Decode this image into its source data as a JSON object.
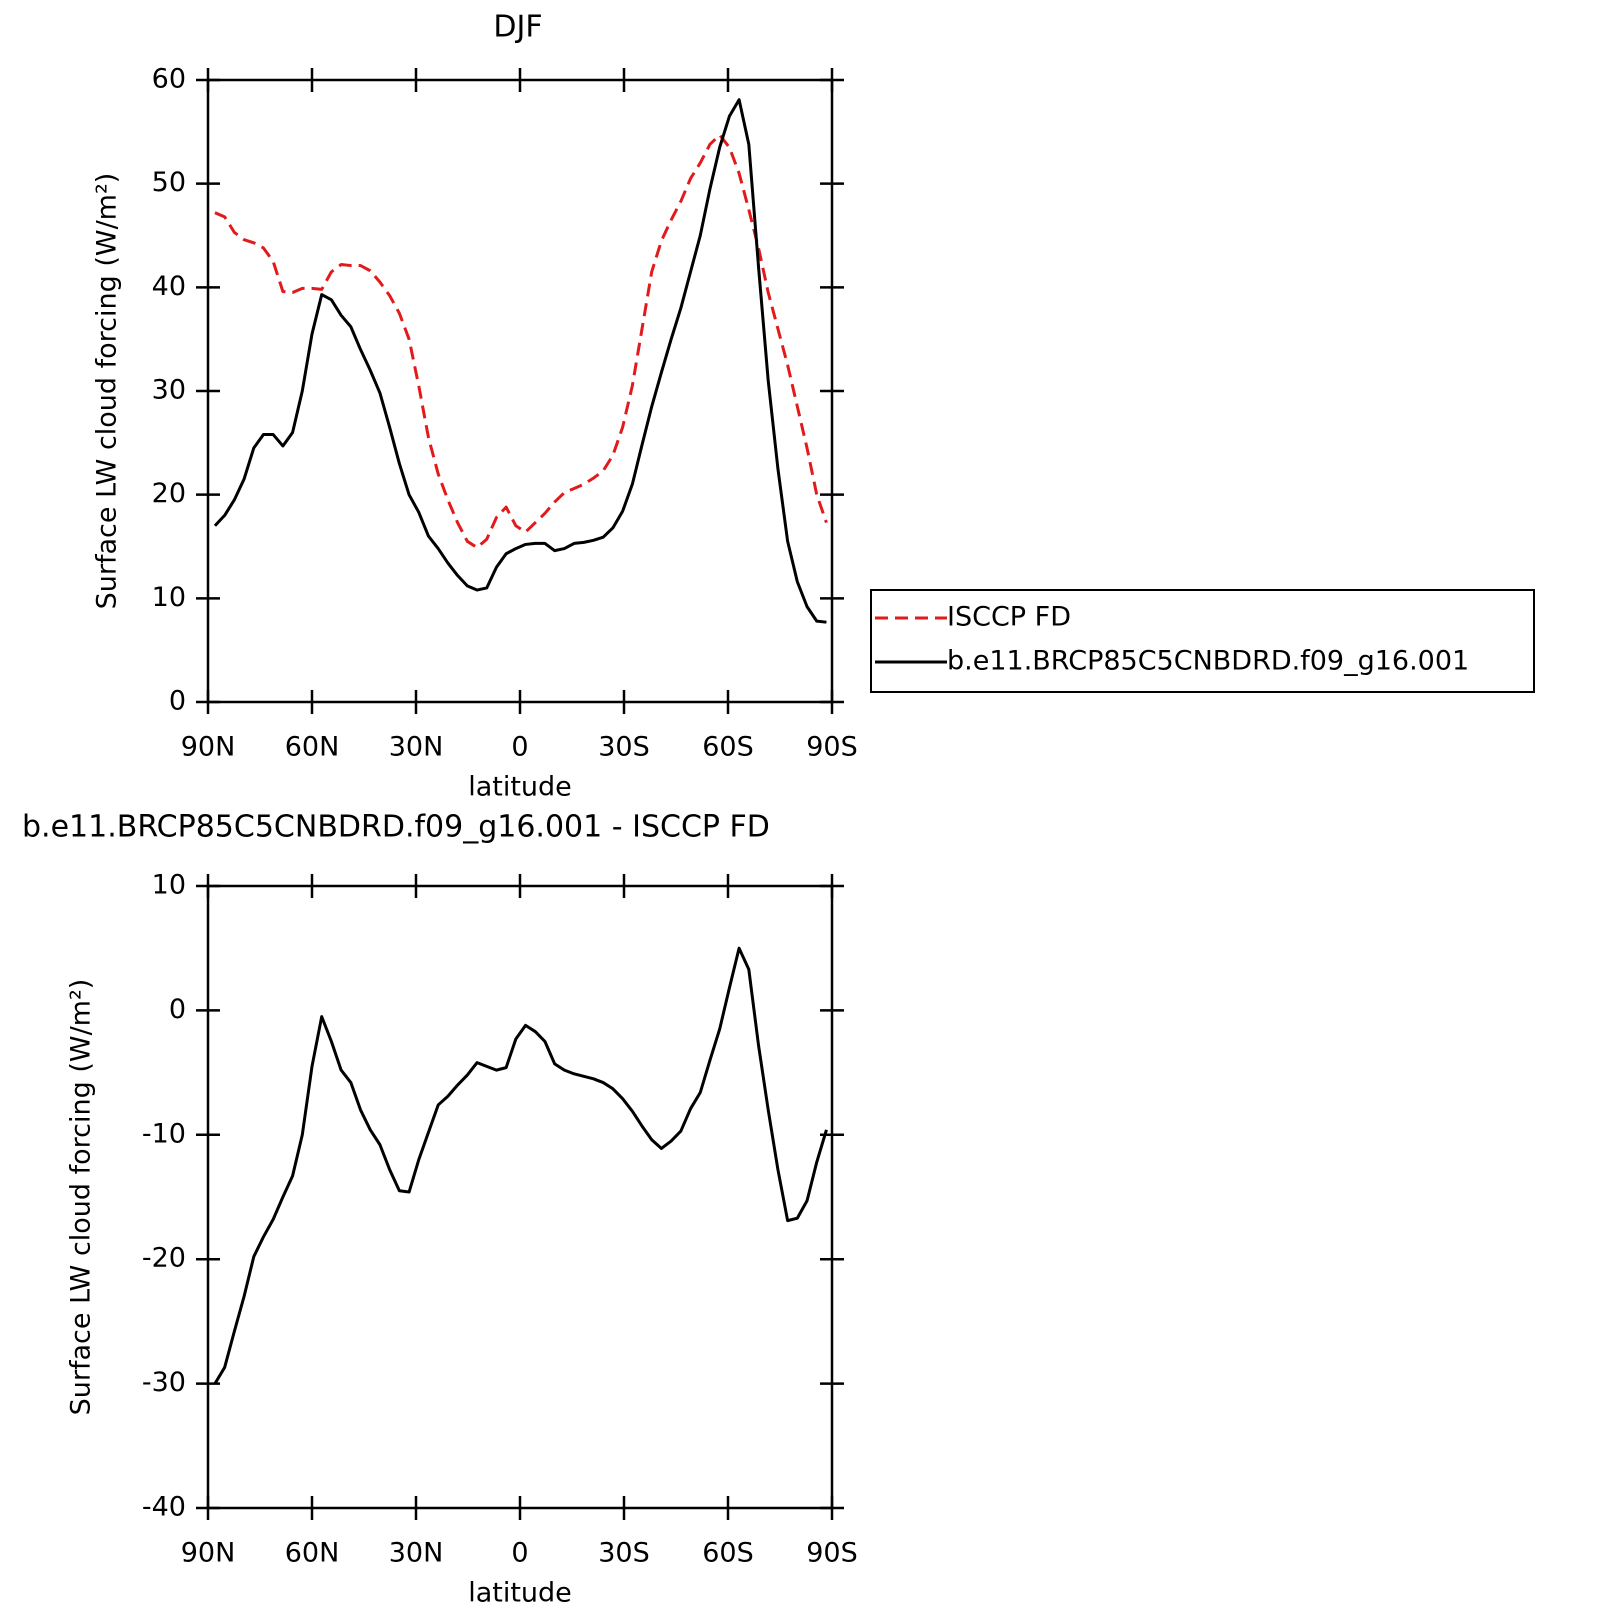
{
  "chart_data": [
    {
      "type": "line",
      "title": "DJF",
      "xlabel": "latitude",
      "ylabel": "Surface LW cloud forcing (W/m²)",
      "x": [
        88,
        85.2,
        82.4,
        79.6,
        76.8,
        74,
        71.2,
        68.4,
        65.6,
        62.8,
        60,
        57.2,
        54.4,
        51.6,
        48.8,
        46,
        43.2,
        40.4,
        37.6,
        34.8,
        32,
        29.2,
        26.4,
        23.6,
        20.8,
        18,
        15.2,
        12.4,
        9.6,
        6.8,
        4,
        1.2,
        -1.6,
        -4.4,
        -7.2,
        -10,
        -12.8,
        -15.6,
        -18.4,
        -21.2,
        -24,
        -26.8,
        -29.6,
        -32.4,
        -35.2,
        -38,
        -40.8,
        -43.6,
        -46.4,
        -49.2,
        -52,
        -54.8,
        -57.6,
        -60.4,
        -63.2,
        -66,
        -68.8,
        -71.6,
        -74.4,
        -77.2,
        -80,
        -82.8,
        -85.6,
        -88.4
      ],
      "series": [
        {
          "name": "ISCCP FD",
          "color": "#e31a1c",
          "linestyle": "dashed",
          "values": [
            47.2,
            46.8,
            45.3,
            44.6,
            44.3,
            43.8,
            42.5,
            39.6,
            39.5,
            39.9,
            39.9,
            39.8,
            41.5,
            42.2,
            42.1,
            42.1,
            41.6,
            40.5,
            39.2,
            37.5,
            35,
            30.5,
            25.5,
            22,
            19.5,
            17.3,
            15.5,
            14.9,
            15.7,
            17.8,
            18.8,
            17,
            16.4,
            17.3,
            18.2,
            19.3,
            20.2,
            20.6,
            21,
            21.6,
            22.3,
            23.8,
            26.5,
            30.5,
            36,
            41.5,
            44.5,
            46.5,
            48.3,
            50.5,
            52,
            53.8,
            54.7,
            53.5,
            51,
            47.5,
            43.8,
            39.5,
            36,
            32.5,
            28.5,
            24.5,
            20,
            17.3
          ]
        },
        {
          "name": "b.e11.BRCP85C5CNBDRD.f09_g16.001",
          "color": "#000000",
          "linestyle": "solid",
          "values": [
            17,
            18,
            19.5,
            21.5,
            24.5,
            25.8,
            25.8,
            24.7,
            26,
            30,
            35.5,
            39.3,
            38.8,
            37.3,
            36.2,
            34,
            32,
            29.8,
            26.5,
            23,
            20,
            18.3,
            16,
            14.8,
            13.4,
            12.2,
            11.2,
            10.8,
            11,
            13,
            14.3,
            14.8,
            15.2,
            15.3,
            15.3,
            14.6,
            14.8,
            15.3,
            15.4,
            15.6,
            15.9,
            16.8,
            18.4,
            21,
            24.8,
            28.5,
            31.8,
            35,
            38,
            41.5,
            45,
            49.5,
            53.5,
            56.5,
            58.1,
            53.8,
            42,
            31,
            22.5,
            15.5,
            11.6,
            9.2,
            7.8,
            7.7
          ]
        }
      ],
      "xlim": [
        90,
        -90
      ],
      "xticks": [
        {
          "value": 90,
          "label": "90N"
        },
        {
          "value": 60,
          "label": "60N"
        },
        {
          "value": 30,
          "label": "30N"
        },
        0,
        {
          "value": -30,
          "label": "30S"
        },
        {
          "value": -60,
          "label": "60S"
        },
        {
          "value": -90,
          "label": "90S"
        }
      ],
      "ylim": [
        0,
        60
      ],
      "yticks": [
        0,
        10,
        20,
        30,
        40,
        50,
        60
      ],
      "legend": "right"
    },
    {
      "type": "line",
      "title": "b.e11.BRCP85C5CNBDRD.f09_g16.001 - ISCCP FD",
      "xlabel": "latitude",
      "ylabel": "Surface LW cloud forcing (W/m²)",
      "x": [
        88,
        85.2,
        82.4,
        79.6,
        76.8,
        74,
        71.2,
        68.4,
        65.6,
        62.8,
        60,
        57.2,
        54.4,
        51.6,
        48.8,
        46,
        43.2,
        40.4,
        37.6,
        34.8,
        32,
        29.2,
        26.4,
        23.6,
        20.8,
        18,
        15.2,
        12.4,
        9.6,
        6.8,
        4,
        1.2,
        -1.6,
        -4.4,
        -7.2,
        -10,
        -12.8,
        -15.6,
        -18.4,
        -21.2,
        -24,
        -26.8,
        -29.6,
        -32.4,
        -35.2,
        -38,
        -40.8,
        -43.6,
        -46.4,
        -49.2,
        -52,
        -54.8,
        -57.6,
        -60.4,
        -63.2,
        -66,
        -68.8,
        -71.6,
        -74.4,
        -77.2,
        -80,
        -82.8,
        -85.6,
        -88.4
      ],
      "series": [
        {
          "color": "#000000",
          "linestyle": "solid",
          "values": [
            -30,
            -28.7,
            -25.8,
            -23,
            -19.8,
            -18.2,
            -16.8,
            -15,
            -13.3,
            -10,
            -4.5,
            -0.5,
            -2.5,
            -4.8,
            -5.8,
            -8,
            -9.6,
            -10.8,
            -12.8,
            -14.5,
            -14.6,
            -12,
            -9.8,
            -7.6,
            -6.9,
            -6,
            -5.2,
            -4.2,
            -4.5,
            -4.8,
            -4.6,
            -2.3,
            -1.2,
            -1.7,
            -2.5,
            -4.3,
            -4.8,
            -5.1,
            -5.3,
            -5.5,
            -5.8,
            -6.3,
            -7.1,
            -8.1,
            -9.3,
            -10.4,
            -11.1,
            -10.5,
            -9.7,
            -7.9,
            -6.6,
            -4,
            -1.5,
            1.8,
            5,
            3.3,
            -2.8,
            -8,
            -12.8,
            -16.9,
            -16.7,
            -15.3,
            -12.2,
            -9.6
          ]
        }
      ],
      "xlim": [
        90,
        -90
      ],
      "xticks": [
        {
          "value": 90,
          "label": "90N"
        },
        {
          "value": 60,
          "label": "60N"
        },
        {
          "value": 30,
          "label": "30N"
        },
        0,
        {
          "value": -30,
          "label": "30S"
        },
        {
          "value": -60,
          "label": "60S"
        },
        {
          "value": -90,
          "label": "90S"
        }
      ],
      "ylim": [
        -40,
        10
      ],
      "yticks": [
        -40,
        -30,
        -20,
        -10,
        0,
        10
      ]
    }
  ]
}
